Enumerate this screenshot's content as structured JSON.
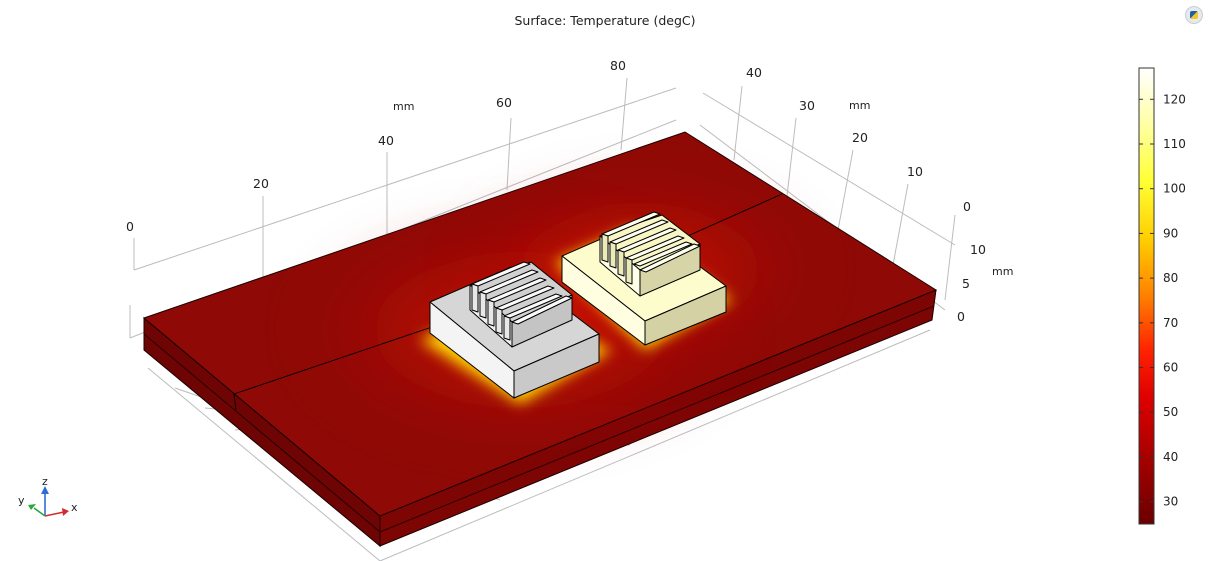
{
  "plot": {
    "title": "Surface: Temperature (degC)"
  },
  "axes": {
    "x": {
      "unit": "mm",
      "ticks": [
        "0",
        "20",
        "40",
        "60",
        "80"
      ]
    },
    "y": {
      "unit": "mm",
      "ticks": [
        "40",
        "30",
        "20",
        "10",
        "0"
      ]
    },
    "z": {
      "unit": "mm",
      "ticks": [
        "10",
        "5",
        "0"
      ]
    }
  },
  "colorbar": {
    "min": 25,
    "max": 127,
    "ticks": [
      "30",
      "40",
      "50",
      "60",
      "70",
      "80",
      "90",
      "100",
      "110",
      "120"
    ],
    "tick_values": [
      30,
      40,
      50,
      60,
      70,
      80,
      90,
      100,
      110,
      120
    ]
  },
  "triad": {
    "x_label": "x",
    "y_label": "y",
    "z_label": "z"
  },
  "colors": {
    "board_top": "#8f0a06",
    "board_side": "#7a0504",
    "hot_glow": "#ffd400",
    "left_block": "#d9d9d9",
    "right_block": "#fdfccd"
  },
  "icons": {
    "corner": "view-settings-icon"
  }
}
